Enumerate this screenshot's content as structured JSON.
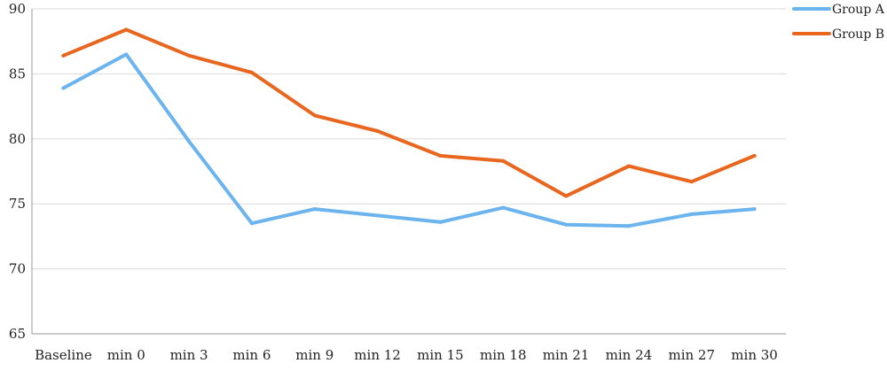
{
  "chart_data": {
    "type": "line",
    "title": "",
    "xlabel": "",
    "ylabel": "",
    "categories": [
      "Baseline",
      "min 0",
      "min 3",
      "min 6",
      "min 9",
      "min 12",
      "min 15",
      "min 18",
      "min 21",
      "min 24",
      "min 27",
      "min 30"
    ],
    "ylim": [
      65,
      90
    ],
    "yticks": [
      65,
      70,
      75,
      80,
      85,
      90
    ],
    "grid": "horizontal",
    "legend_position": "top-right",
    "series": [
      {
        "name": "Group A",
        "color": "#6cb4ee",
        "values": [
          83.9,
          86.5,
          79.8,
          73.5,
          74.6,
          74.1,
          73.6,
          74.7,
          73.4,
          73.3,
          74.2,
          74.6
        ]
      },
      {
        "name": "Group B",
        "color": "#e8661e",
        "values": [
          86.4,
          88.4,
          86.4,
          85.1,
          81.8,
          80.6,
          78.7,
          78.3,
          75.6,
          77.9,
          76.7,
          78.7
        ]
      }
    ]
  }
}
